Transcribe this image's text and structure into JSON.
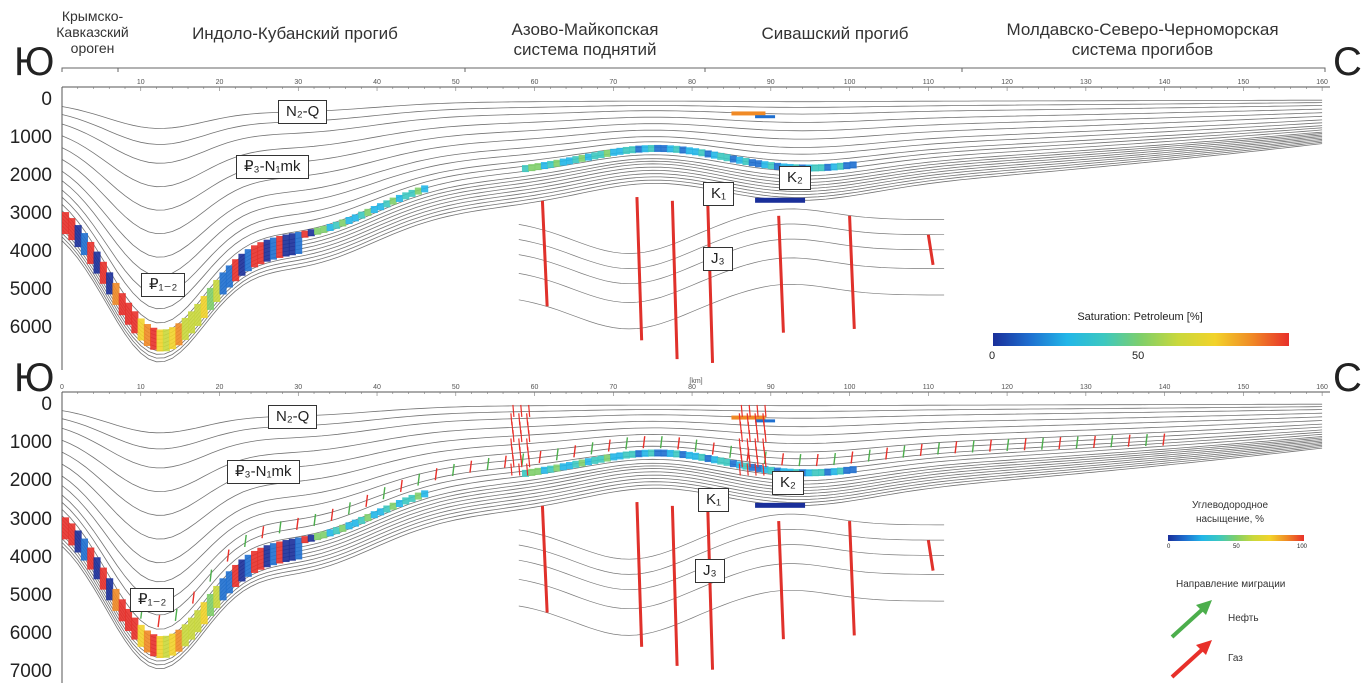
{
  "regions": [
    {
      "name": "Крымско-\nКавказский\nороген"
    },
    {
      "name": "Индоло-Кубанский прогиб"
    },
    {
      "name": "Азово-Майкопская\nсистема поднятий"
    },
    {
      "name": "Сивашский прогиб"
    },
    {
      "name": "Молдавско-Северо-Черноморская\nсистема прогибов"
    }
  ],
  "compass": {
    "south": "Ю",
    "north": "С"
  },
  "top_panel": {
    "depth_ticks": [
      "0",
      "1000",
      "2000",
      "3000",
      "4000",
      "5000",
      "6000"
    ],
    "distance_ticks": [
      "10",
      "20",
      "30",
      "40",
      "50",
      "60",
      "70",
      "80",
      "90",
      "100",
      "110",
      "120",
      "130",
      "140",
      "150",
      "160"
    ],
    "units": {
      "n2q": "N₂-Q",
      "p3n1mk": "₽₃-N₁mk",
      "p12": "₽₁₋₂",
      "k1": "K₁",
      "k2": "K₂",
      "j3": "J₃"
    },
    "legend": {
      "title": "Saturation: Petroleum [%]",
      "ticks": [
        "0",
        "50"
      ]
    }
  },
  "bottom_panel": {
    "depth_ticks": [
      "0",
      "1000",
      "2000",
      "3000",
      "4000",
      "5000",
      "6000",
      "7000"
    ],
    "distance_ticks": [
      "0",
      "10",
      "20",
      "30",
      "40",
      "50",
      "60",
      "70",
      "80",
      "90",
      "100",
      "110",
      "120",
      "130",
      "140",
      "150",
      "160"
    ],
    "axis_unit": "[km]",
    "units": {
      "n2q": "N₂-Q",
      "p3n1mk": "₽₃-N₁mk",
      "p12": "₽₁₋₂",
      "k1": "K₁",
      "k2": "K₂",
      "j3": "J₃"
    },
    "legend": {
      "title": "Углеводородное\nнасыщение, %",
      "ticks": [
        "0",
        "50",
        "100"
      ],
      "migration_title": "Направление миграции",
      "oil_label": "Нефть",
      "gas_label": "Газ"
    }
  },
  "colors": {
    "oil_arrow": "#4cae4c",
    "gas_arrow": "#e8302a",
    "fault": "#e0312b",
    "horizon": "#5a5a5a",
    "saturation_scale": [
      "#1a2f9a",
      "#1e6fd0",
      "#22b6e8",
      "#3cc8c0",
      "#7fcf6a",
      "#c9d83c",
      "#f2d32a",
      "#f08a26",
      "#e8302a"
    ]
  }
}
